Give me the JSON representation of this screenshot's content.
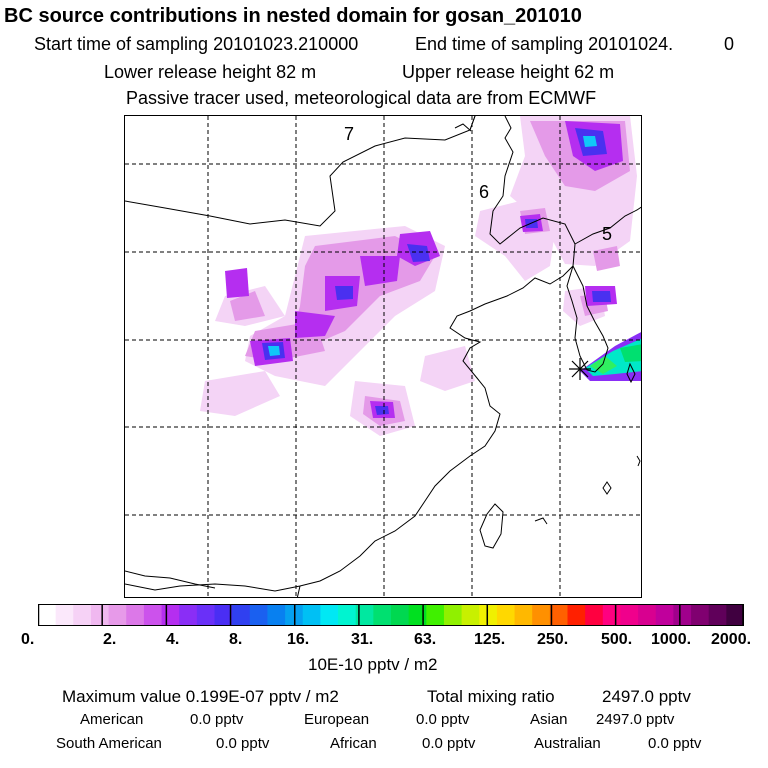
{
  "header": {
    "title": "BC  source contributions in nested domain for gosan_201010",
    "start_label": "Start time of sampling 20101023.210000",
    "end_label": "End time of sampling 20101024.",
    "end_value": "0",
    "lower_release": "Lower release height   82 m",
    "upper_release": "Upper release height   62 m",
    "tracer_note": "Passive tracer used, meteorological data are from ECMWF"
  },
  "map": {
    "sector_labels": [
      "7",
      "6",
      "5"
    ],
    "receptor_marker": "gosan-receptor-star"
  },
  "colorbar": {
    "colors": [
      "#ffffff",
      "#fbe8fb",
      "#f6d2f6",
      "#f0b8f0",
      "#e79ae9",
      "#dc78e8",
      "#cc52ec",
      "#b52ef0",
      "#8a2ef6",
      "#6a30f8",
      "#4a2ef4",
      "#3040f0",
      "#1a60f0",
      "#0880f0",
      "#05a0f0",
      "#00c0f4",
      "#00e8f4",
      "#00f4d0",
      "#00e8a0",
      "#00e070",
      "#00d850",
      "#00e020",
      "#40f000",
      "#90f000",
      "#c8f000",
      "#f0f000",
      "#ffd800",
      "#ffb800",
      "#ff9000",
      "#ff6000",
      "#ff2000",
      "#ff0040",
      "#ff0080",
      "#f0008c",
      "#d80090",
      "#c0009c",
      "#a0008c",
      "#800070",
      "#60005a",
      "#400040"
    ],
    "tick_labels": [
      "0.",
      "2.",
      "4.",
      "8.",
      "16.",
      "31.",
      "63.",
      "125.",
      "250.",
      "500.",
      "1000.",
      "2000."
    ],
    "unit": "10E-10 pptv / m2"
  },
  "stats": {
    "max_label": "Maximum value  0.199E-07 pptv / m2",
    "total_label": "Total mixing ratio",
    "total_value": "2497.0 pptv",
    "sources_row1": [
      {
        "label": "American",
        "value": "0.0 pptv"
      },
      {
        "label": "European",
        "value": "0.0 pptv"
      },
      {
        "label": "Asian",
        "value": "2497.0 pptv"
      }
    ],
    "sources_row2": [
      {
        "label": "South American",
        "value": "0.0 pptv"
      },
      {
        "label": "African",
        "value": "0.0 pptv"
      },
      {
        "label": "Australian",
        "value": "0.0 pptv"
      }
    ]
  }
}
